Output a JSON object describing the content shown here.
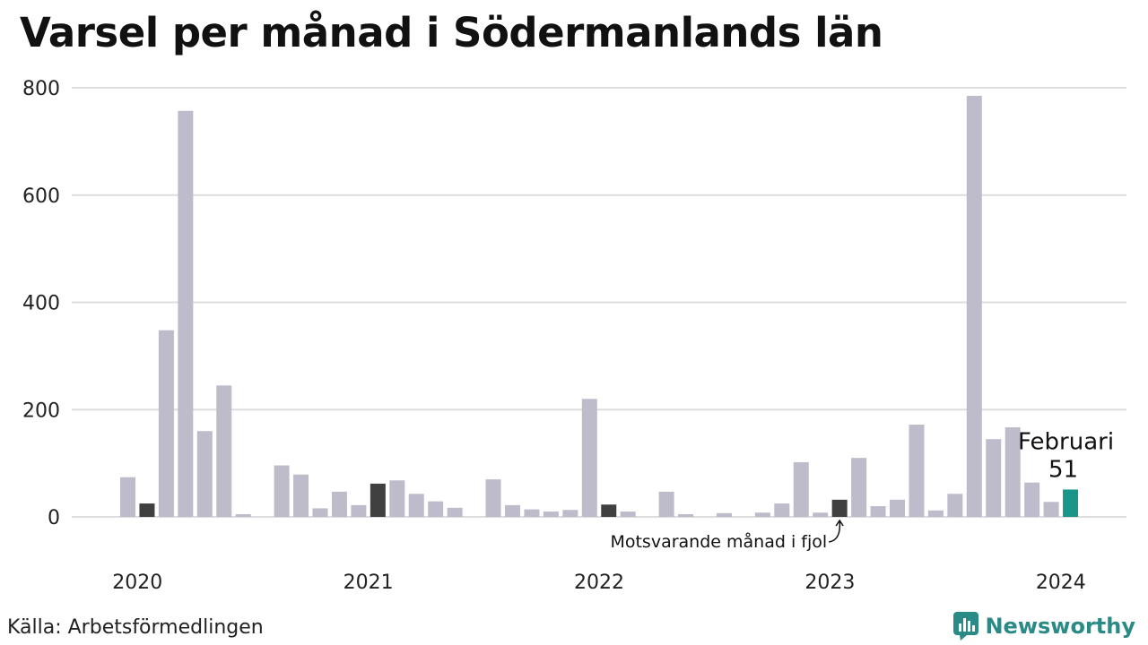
{
  "chart_data": {
    "type": "bar",
    "title": "Varsel per månad i Södermanlands län",
    "xlabel": "",
    "ylabel": "",
    "ylim": [
      0,
      800
    ],
    "yticks": [
      0,
      200,
      400,
      600,
      800
    ],
    "grid": true,
    "year_labels": [
      "2020",
      "2021",
      "2022",
      "2023",
      "2024"
    ],
    "x": [
      "2020-01",
      "2020-02",
      "2020-03",
      "2020-04",
      "2020-05",
      "2020-06",
      "2020-07",
      "2020-08",
      "2020-09",
      "2020-10",
      "2020-11",
      "2020-12",
      "2021-01",
      "2021-02",
      "2021-03",
      "2021-04",
      "2021-05",
      "2021-06",
      "2021-07",
      "2021-08",
      "2021-09",
      "2021-10",
      "2021-11",
      "2021-12",
      "2022-01",
      "2022-02",
      "2022-03",
      "2022-04",
      "2022-05",
      "2022-06",
      "2022-07",
      "2022-08",
      "2022-09",
      "2022-10",
      "2022-11",
      "2022-12",
      "2023-01",
      "2023-02",
      "2023-03",
      "2023-04",
      "2023-05",
      "2023-06",
      "2023-07",
      "2023-08",
      "2023-09",
      "2023-10",
      "2023-11",
      "2023-12",
      "2024-01",
      "2024-02"
    ],
    "values": [
      74,
      25,
      348,
      757,
      160,
      245,
      5,
      0,
      96,
      79,
      16,
      47,
      22,
      62,
      68,
      43,
      29,
      17,
      0,
      70,
      22,
      14,
      10,
      13,
      220,
      23,
      10,
      0,
      47,
      5,
      0,
      7,
      0,
      8,
      25,
      102,
      8,
      32,
      110,
      20,
      32,
      172,
      12,
      43,
      785,
      145,
      167,
      64,
      28,
      51
    ],
    "highlight": {
      "label": "Februari",
      "value_label": "51"
    },
    "annotation": "Motsvarande månad i fjol",
    "colors": {
      "default": "#bebcca",
      "previous_year": "#404040",
      "current": "#1a9688",
      "grid": "#dddddd"
    }
  },
  "source": "Källa: Arbetsförmedlingen",
  "brand": {
    "name": "Newsworthy",
    "icon": "newsworthy-logo-icon"
  }
}
